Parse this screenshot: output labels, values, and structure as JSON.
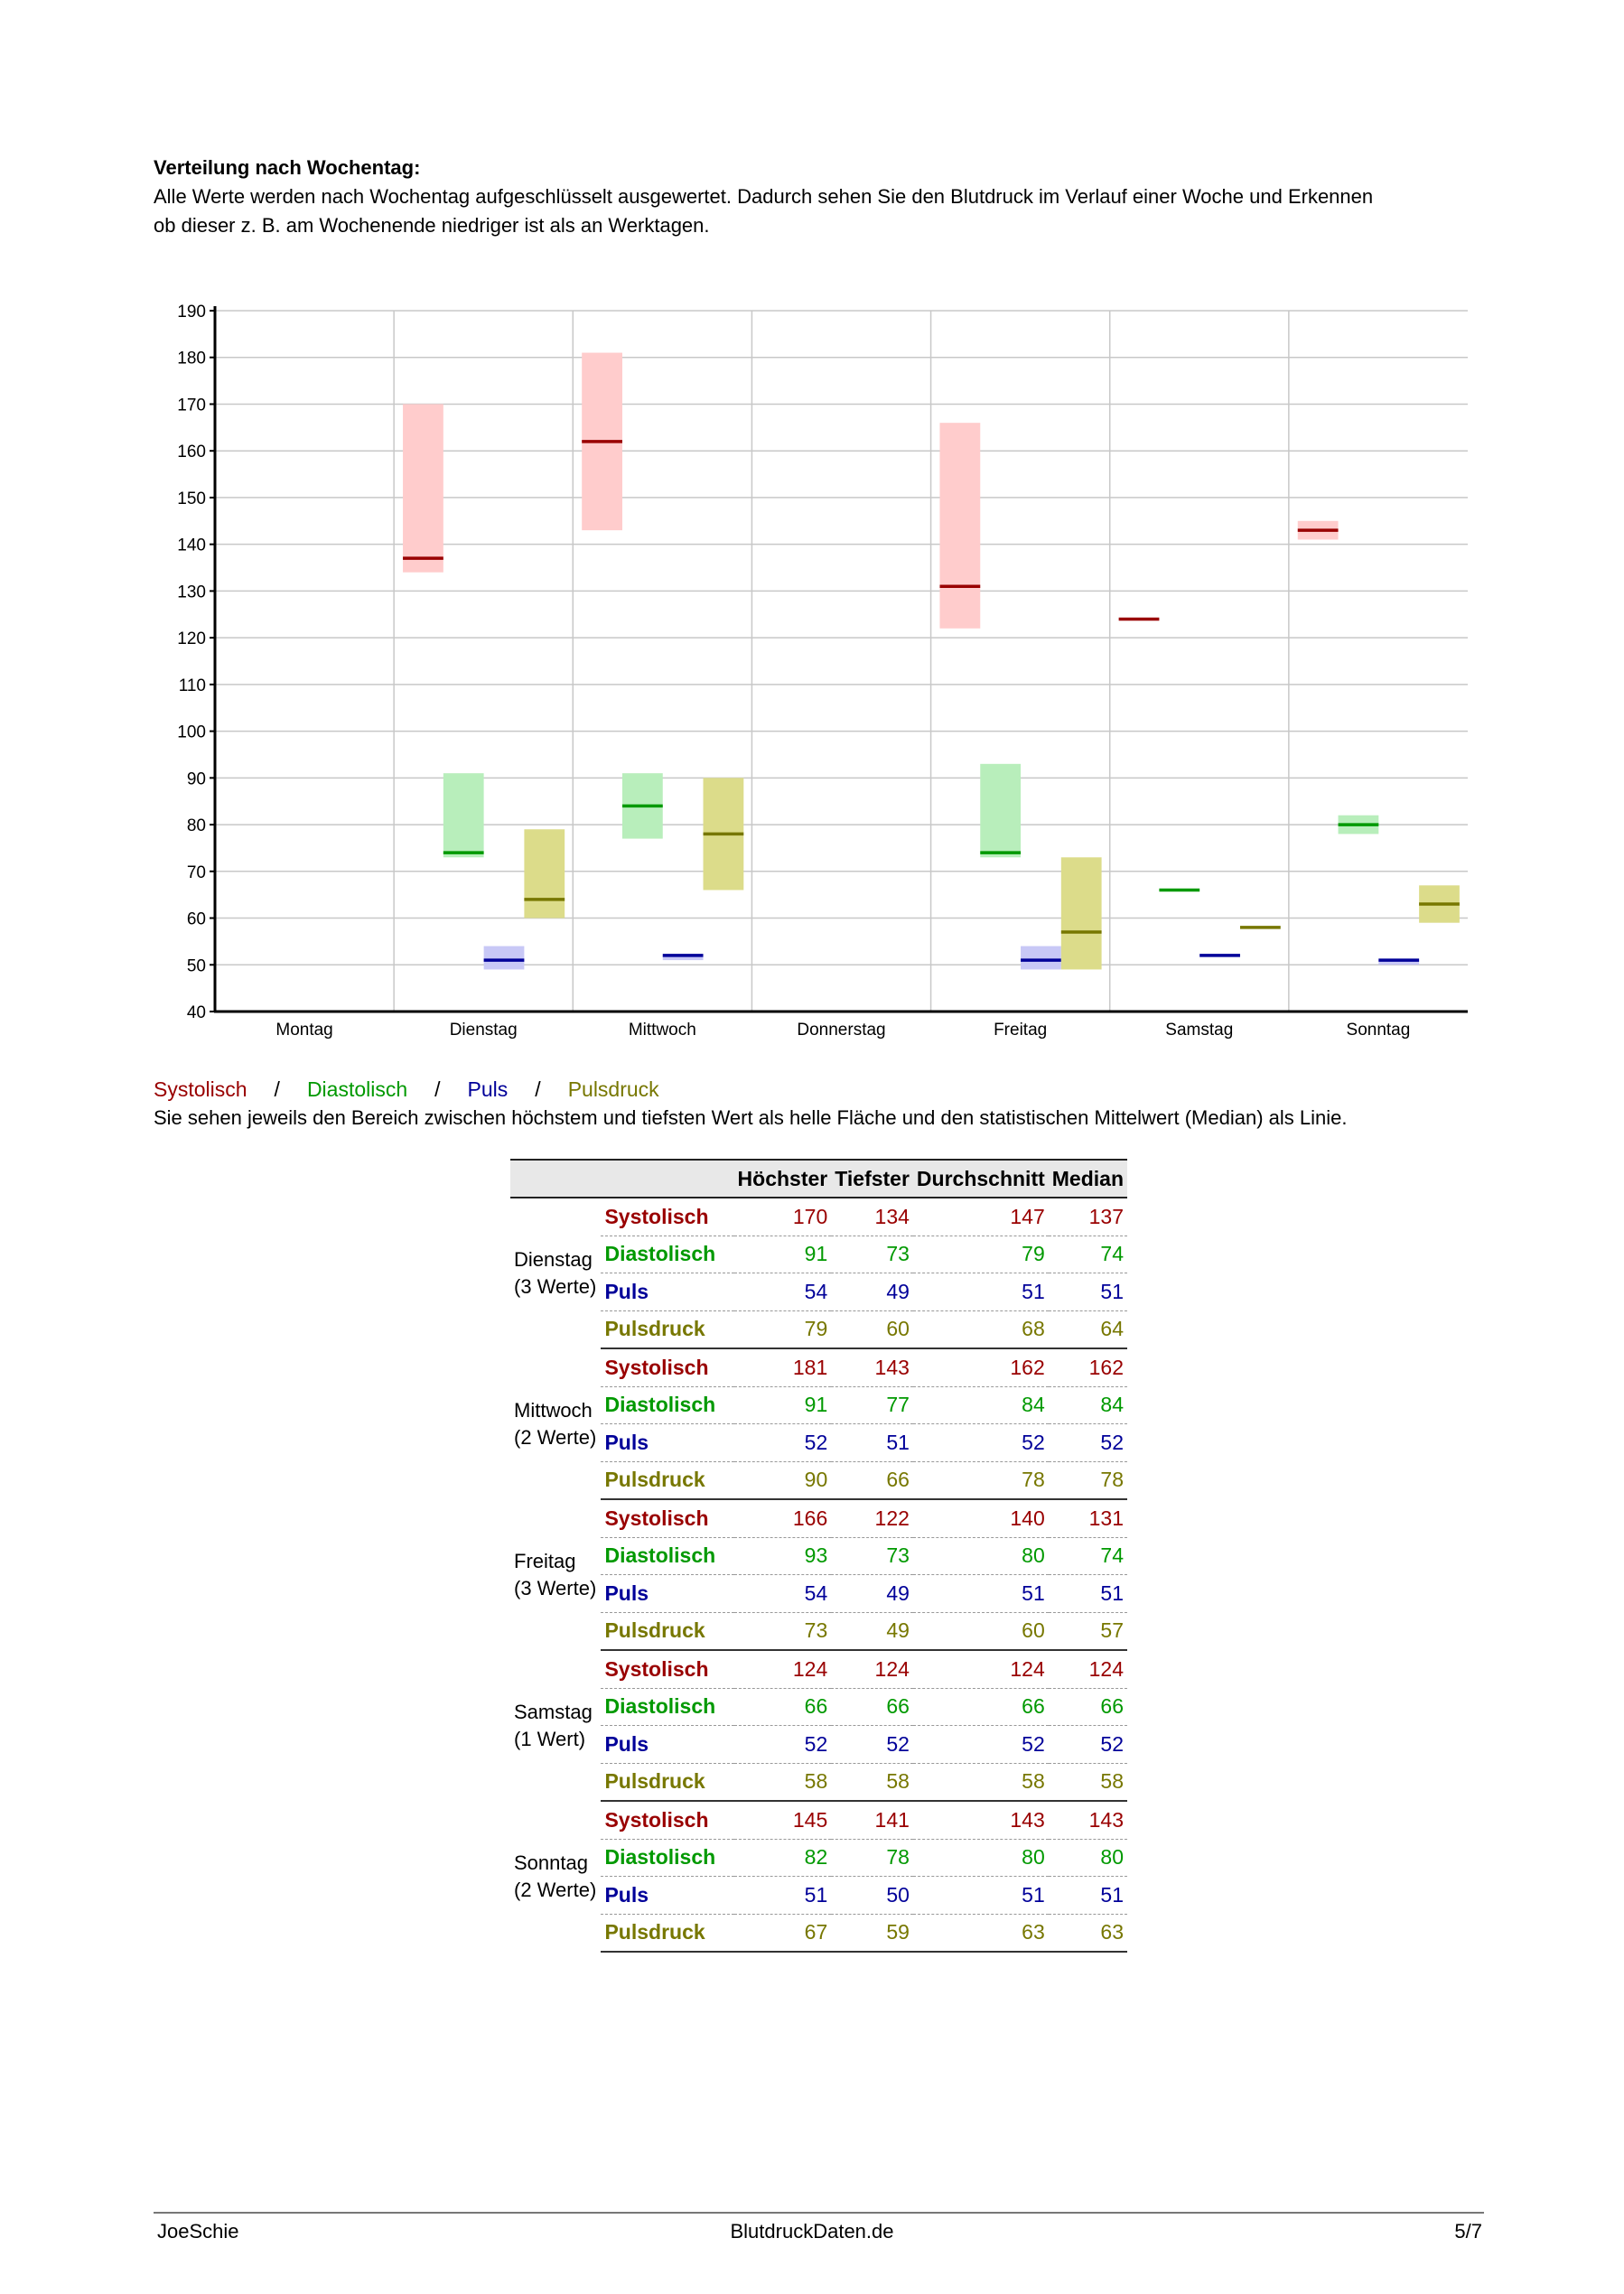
{
  "intro": {
    "heading": "Verteilung nach Wochentag:",
    "line1": "Alle Werte werden nach Wochentag aufgeschlüsselt ausgewertet. Dadurch sehen Sie den Blutdruck im Verlauf einer Woche und Erkennen",
    "line2": "ob dieser z. B. am Wochenende niedriger ist als an Werktagen."
  },
  "colors": {
    "systolisch": "#990000",
    "diastolisch": "#009900",
    "puls": "#000099",
    "pulsdruck": "#777700",
    "systolisch_fill": "#ffcccc",
    "diastolisch_fill": "#b8eebb",
    "puls_fill": "#c8c8f6",
    "pulsdruck_fill": "#dcdc8a"
  },
  "chart_data": {
    "type": "bar",
    "categories": [
      "Montag",
      "Dienstag",
      "Mittwoch",
      "Donnerstag",
      "Freitag",
      "Samstag",
      "Sonntag"
    ],
    "ylim": [
      40,
      190
    ],
    "yticks": [
      40,
      50,
      60,
      70,
      80,
      90,
      100,
      110,
      120,
      130,
      140,
      150,
      160,
      170,
      180,
      190
    ],
    "grid": true,
    "series": [
      {
        "name": "Systolisch",
        "key": "systolisch",
        "ranges": [
          null,
          {
            "min": 134,
            "max": 170,
            "median": 137
          },
          {
            "min": 143,
            "max": 181,
            "median": 162
          },
          null,
          {
            "min": 122,
            "max": 166,
            "median": 131
          },
          {
            "min": 124,
            "max": 124,
            "median": 124
          },
          {
            "min": 141,
            "max": 145,
            "median": 143
          }
        ]
      },
      {
        "name": "Diastolisch",
        "key": "diastolisch",
        "ranges": [
          null,
          {
            "min": 73,
            "max": 91,
            "median": 74
          },
          {
            "min": 77,
            "max": 91,
            "median": 84
          },
          null,
          {
            "min": 73,
            "max": 93,
            "median": 74
          },
          {
            "min": 66,
            "max": 66,
            "median": 66
          },
          {
            "min": 78,
            "max": 82,
            "median": 80
          }
        ]
      },
      {
        "name": "Puls",
        "key": "puls",
        "ranges": [
          null,
          {
            "min": 49,
            "max": 54,
            "median": 51
          },
          {
            "min": 51,
            "max": 52,
            "median": 52
          },
          null,
          {
            "min": 49,
            "max": 54,
            "median": 51
          },
          {
            "min": 52,
            "max": 52,
            "median": 52
          },
          {
            "min": 50,
            "max": 51,
            "median": 51
          }
        ]
      },
      {
        "name": "Pulsdruck",
        "key": "pulsdruck",
        "ranges": [
          null,
          {
            "min": 60,
            "max": 79,
            "median": 64
          },
          {
            "min": 66,
            "max": 90,
            "median": 78
          },
          null,
          {
            "min": 49,
            "max": 73,
            "median": 57
          },
          {
            "min": 58,
            "max": 58,
            "median": 58
          },
          {
            "min": 59,
            "max": 67,
            "median": 63
          }
        ]
      }
    ]
  },
  "legend": {
    "systolisch": "Systolisch",
    "diastolisch": "Diastolisch",
    "puls": "Puls",
    "pulsdruck": "Pulsdruck",
    "separator": "/",
    "description": "Sie sehen jeweils den Bereich zwischen höchstem und tiefsten Wert als helle Fläche und den statistischen Mittelwert (Median) als Linie."
  },
  "table": {
    "headers": [
      "Höchster",
      "Tiefster",
      "Durchschnitt",
      "Median"
    ],
    "groups": [
      {
        "day": "Dienstag",
        "count": "(3 Werte)",
        "rows": [
          {
            "label": "Systolisch",
            "key": "systolisch",
            "values": [
              "170",
              "134",
              "147",
              "137"
            ]
          },
          {
            "label": "Diastolisch",
            "key": "diastolisch",
            "values": [
              "91",
              "73",
              "79",
              "74"
            ]
          },
          {
            "label": "Puls",
            "key": "puls",
            "values": [
              "54",
              "49",
              "51",
              "51"
            ]
          },
          {
            "label": "Pulsdruck",
            "key": "pulsdruck",
            "values": [
              "79",
              "60",
              "68",
              "64"
            ]
          }
        ]
      },
      {
        "day": "Mittwoch",
        "count": "(2 Werte)",
        "rows": [
          {
            "label": "Systolisch",
            "key": "systolisch",
            "values": [
              "181",
              "143",
              "162",
              "162"
            ]
          },
          {
            "label": "Diastolisch",
            "key": "diastolisch",
            "values": [
              "91",
              "77",
              "84",
              "84"
            ]
          },
          {
            "label": "Puls",
            "key": "puls",
            "values": [
              "52",
              "51",
              "52",
              "52"
            ]
          },
          {
            "label": "Pulsdruck",
            "key": "pulsdruck",
            "values": [
              "90",
              "66",
              "78",
              "78"
            ]
          }
        ]
      },
      {
        "day": "Freitag",
        "count": "(3 Werte)",
        "rows": [
          {
            "label": "Systolisch",
            "key": "systolisch",
            "values": [
              "166",
              "122",
              "140",
              "131"
            ]
          },
          {
            "label": "Diastolisch",
            "key": "diastolisch",
            "values": [
              "93",
              "73",
              "80",
              "74"
            ]
          },
          {
            "label": "Puls",
            "key": "puls",
            "values": [
              "54",
              "49",
              "51",
              "51"
            ]
          },
          {
            "label": "Pulsdruck",
            "key": "pulsdruck",
            "values": [
              "73",
              "49",
              "60",
              "57"
            ]
          }
        ]
      },
      {
        "day": "Samstag",
        "count": "(1 Wert)",
        "rows": [
          {
            "label": "Systolisch",
            "key": "systolisch",
            "values": [
              "124",
              "124",
              "124",
              "124"
            ]
          },
          {
            "label": "Diastolisch",
            "key": "diastolisch",
            "values": [
              "66",
              "66",
              "66",
              "66"
            ]
          },
          {
            "label": "Puls",
            "key": "puls",
            "values": [
              "52",
              "52",
              "52",
              "52"
            ]
          },
          {
            "label": "Pulsdruck",
            "key": "pulsdruck",
            "values": [
              "58",
              "58",
              "58",
              "58"
            ]
          }
        ]
      },
      {
        "day": "Sonntag",
        "count": "(2 Werte)",
        "rows": [
          {
            "label": "Systolisch",
            "key": "systolisch",
            "values": [
              "145",
              "141",
              "143",
              "143"
            ]
          },
          {
            "label": "Diastolisch",
            "key": "diastolisch",
            "values": [
              "82",
              "78",
              "80",
              "80"
            ]
          },
          {
            "label": "Puls",
            "key": "puls",
            "values": [
              "51",
              "50",
              "51",
              "51"
            ]
          },
          {
            "label": "Pulsdruck",
            "key": "pulsdruck",
            "values": [
              "67",
              "59",
              "63",
              "63"
            ]
          }
        ]
      }
    ]
  },
  "footer": {
    "left": "JoeSchie",
    "center": "BlutdruckDaten.de",
    "right": "5/7"
  }
}
